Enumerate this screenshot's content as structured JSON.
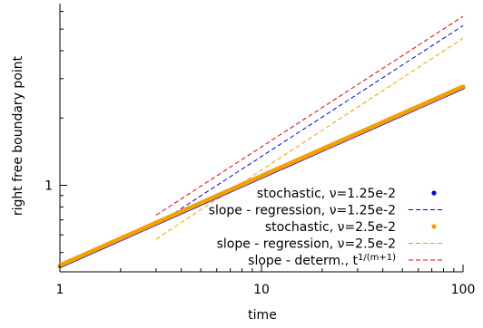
{
  "chart_data": {
    "type": "scatter",
    "xlabel": "time",
    "ylabel": "right free boundary point",
    "xscale": "log",
    "yscale": "log",
    "xlim": [
      1,
      100
    ],
    "ylim": [
      0.41,
      6.5
    ],
    "x_ticks": [
      {
        "value": 1,
        "label": "1"
      },
      {
        "value": 10,
        "label": "10"
      },
      {
        "value": 100,
        "label": "100"
      }
    ],
    "y_ticks": [
      {
        "value": 1,
        "label": "1"
      }
    ],
    "grid": false,
    "legend_position": "bottom-right",
    "series": [
      {
        "name": "stochastic,  ν=1.25e-2",
        "kind": "points",
        "color": "#0000ee",
        "x_range": [
          1,
          100
        ],
        "y_start": 0.435,
        "slope": 0.4
      },
      {
        "name": "slope - regression, ν=1.25e-2",
        "kind": "dashed-line",
        "color": "#0000ee",
        "x": [
          3,
          100
        ],
        "y": [
          0.665,
          5.18
        ]
      },
      {
        "name": "stochastic,  ν=2.5e-2",
        "kind": "points",
        "color": "#f5a000",
        "x_range": [
          1,
          100
        ],
        "y_start": 0.438,
        "slope": 0.4
      },
      {
        "name": "slope - regression, ν=2.5e-2",
        "kind": "dashed-line",
        "color": "#f5a000",
        "x": [
          3,
          100
        ],
        "y": [
          0.575,
          4.55
        ]
      },
      {
        "name": "slope - determ., t",
        "name_superscript": "1/(m+1)",
        "kind": "dashed-line",
        "color": "#ee0000",
        "x": [
          3,
          100
        ],
        "y": [
          0.735,
          5.7
        ]
      }
    ]
  }
}
